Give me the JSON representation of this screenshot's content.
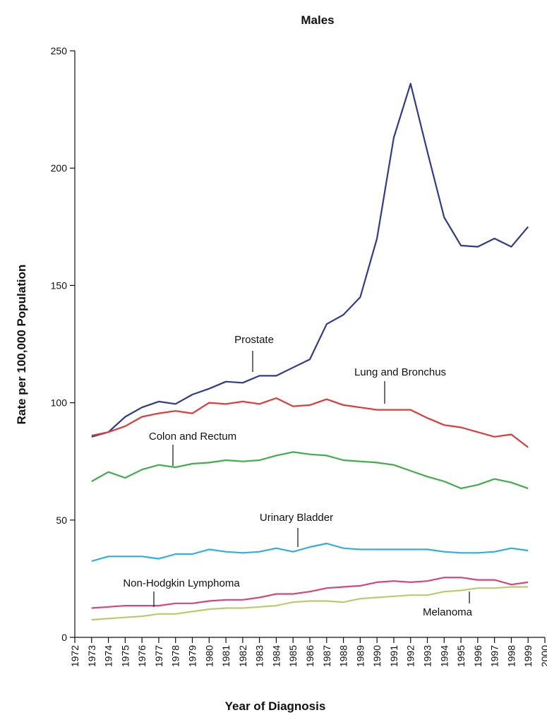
{
  "chart_data": {
    "type": "line",
    "title": "Males",
    "xlabel": "Year of Diagnosis",
    "ylabel": "Rate per 100,000 Population",
    "x": [
      1973,
      1974,
      1975,
      1976,
      1977,
      1978,
      1979,
      1980,
      1981,
      1982,
      1983,
      1984,
      1985,
      1986,
      1987,
      1988,
      1989,
      1990,
      1991,
      1992,
      1993,
      1994,
      1995,
      1996,
      1997,
      1998,
      1999
    ],
    "xlim": [
      1972,
      2000
    ],
    "xticks": [
      1972,
      1973,
      1974,
      1975,
      1976,
      1977,
      1978,
      1979,
      1980,
      1981,
      1982,
      1983,
      1984,
      1985,
      1986,
      1987,
      1988,
      1989,
      1990,
      1991,
      1992,
      1993,
      1994,
      1995,
      1996,
      1997,
      1998,
      1999,
      2000
    ],
    "ylim": [
      0,
      250
    ],
    "yticks": [
      0,
      50,
      100,
      150,
      200,
      250
    ],
    "series": [
      {
        "name": "Prostate",
        "color": "#2e3a94",
        "values": [
          85.5,
          87.5,
          94,
          98,
          100.5,
          99.5,
          103.5,
          106,
          109,
          108.5,
          111.5,
          111.5,
          115,
          118.5,
          133.5,
          137.5,
          145,
          170,
          213,
          236,
          207,
          179,
          167,
          166.5,
          170,
          166.5,
          175
        ]
      },
      {
        "name": "Lung and Bronchus",
        "color": "#e23a3a",
        "values": [
          86,
          87.5,
          90,
          94,
          95.5,
          96.5,
          95.5,
          100,
          99.5,
          100.5,
          99.5,
          102,
          98.5,
          99,
          101.5,
          99,
          98,
          97,
          97,
          97,
          93.5,
          90.5,
          89.5,
          87.5,
          85.5,
          86.5,
          81
        ]
      },
      {
        "name": "Colon and Rectum",
        "color": "#3fae49",
        "values": [
          66.5,
          70.5,
          68,
          71.5,
          73.5,
          72.5,
          74,
          74.5,
          75.5,
          75,
          75.5,
          77.5,
          79,
          78,
          77.5,
          75.5,
          75,
          74.5,
          73.5,
          71,
          68.5,
          66.5,
          63.5,
          65,
          67.5,
          66,
          63.5
        ]
      },
      {
        "name": "Urinary Bladder",
        "color": "#2eaee5",
        "values": [
          32.5,
          34.5,
          34.5,
          34.5,
          33.5,
          35.5,
          35.5,
          37.5,
          36.5,
          36,
          36.5,
          38,
          36.5,
          38.5,
          40,
          38,
          37.5,
          37.5,
          37.5,
          37.5,
          37.5,
          36.5,
          36,
          36,
          36.5,
          38,
          37
        ]
      },
      {
        "name": "Non-Hodgkin Lymphoma",
        "color": "#d8457e",
        "values": [
          12.5,
          13,
          13.5,
          13.5,
          13.5,
          14.5,
          14.5,
          15.5,
          16,
          16,
          17,
          18.5,
          18.5,
          19.5,
          21,
          21.5,
          22,
          23.5,
          24,
          23.5,
          24,
          25.5,
          25.5,
          24.5,
          24.5,
          22.5,
          23.5
        ]
      },
      {
        "name": "Melanoma",
        "color": "#b8cc6e",
        "values": [
          7.5,
          8,
          8.5,
          9,
          10,
          10,
          11,
          12,
          12.5,
          12.5,
          13,
          13.5,
          15,
          15.5,
          15.5,
          15,
          16.5,
          17,
          17.5,
          18,
          18,
          19.5,
          20,
          21,
          21,
          21.5,
          21.5
        ]
      }
    ]
  }
}
